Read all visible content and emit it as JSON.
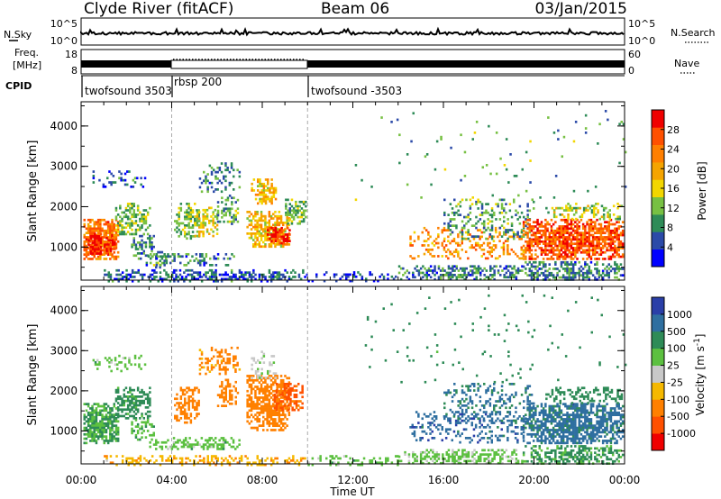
{
  "header": {
    "station": "Clyde River (fitACF)",
    "beam": "Beam 06",
    "date": "03/Jan/2015"
  },
  "top_panel": {
    "nsky_label": "N.Sky",
    "nsky_ticks": [
      "10^5",
      "10^0"
    ],
    "nsearch_label": "N.Search",
    "nsearch_ticks": [
      "10^5",
      "10^0"
    ],
    "freq_label_1": "Freq.",
    "freq_label_2": "[MHz]",
    "freq_ticks": [
      "18",
      "8"
    ],
    "nave_label": "Nave",
    "nave_ticks": [
      "60",
      "0"
    ],
    "cpid_label": "CPID",
    "cpid_segments": [
      {
        "label": "twofsound 3503",
        "start_hour": 0,
        "end_hour": 4
      },
      {
        "label": "rbsp 200",
        "start_hour": 4,
        "end_hour": 10
      },
      {
        "label": "twofsound -3503",
        "start_hour": 10,
        "end_hour": 24
      }
    ]
  },
  "chart_data": [
    {
      "type": "heatmap",
      "name": "power",
      "ylabel": "Slant Range [km]",
      "xlabel": "Time UT",
      "xlim": [
        0,
        24
      ],
      "ylim": [
        180,
        4600
      ],
      "x_ticks": [
        "00:00",
        "04:00",
        "08:00",
        "12:00",
        "16:00",
        "20:00",
        "00:00"
      ],
      "x_tick_hours": [
        0,
        4,
        8,
        12,
        16,
        20,
        24
      ],
      "y_ticks": [
        1000,
        2000,
        3000,
        4000
      ],
      "colorbar": {
        "label": "Power [dB]",
        "range": [
          0,
          32
        ],
        "ticks": [
          4,
          8,
          12,
          16,
          20,
          24,
          28
        ],
        "colors": [
          "#0000ff",
          "#2b4aa8",
          "#2e8b57",
          "#77c043",
          "#f2d600",
          "#f5a400",
          "#ff7f00",
          "#ff5000",
          "#f00000"
        ]
      },
      "mode_change_hours": [
        4,
        10
      ],
      "regions": [
        {
          "t": [
            0.1,
            1.6
          ],
          "r": [
            700,
            1700
          ],
          "v": 24,
          "d": 0.9
        },
        {
          "t": [
            0.3,
            0.9
          ],
          "r": [
            850,
            1350
          ],
          "v": 30,
          "d": 0.95
        },
        {
          "t": [
            1.0,
            1.5
          ],
          "r": [
            850,
            1250
          ],
          "v": 28,
          "d": 0.9
        },
        {
          "t": [
            1.5,
            3.0
          ],
          "r": [
            1300,
            2100
          ],
          "v": 12,
          "d": 0.6
        },
        {
          "t": [
            2.2,
            3.2
          ],
          "r": [
            800,
            1300
          ],
          "v": 8,
          "d": 0.5
        },
        {
          "t": [
            0.5,
            2.8
          ],
          "r": [
            2500,
            2900
          ],
          "v": 6,
          "d": 0.25
        },
        {
          "t": [
            3.0,
            3.8
          ],
          "r": [
            500,
            900
          ],
          "v": 10,
          "d": 0.4
        },
        {
          "t": [
            4.1,
            5.2
          ],
          "r": [
            1200,
            2100
          ],
          "v": 12,
          "d": 0.6
        },
        {
          "t": [
            5.0,
            6.0
          ],
          "r": [
            1300,
            2000
          ],
          "v": 16,
          "d": 0.6
        },
        {
          "t": [
            5.2,
            7.0
          ],
          "r": [
            2400,
            3100
          ],
          "v": 8,
          "d": 0.35
        },
        {
          "t": [
            6.0,
            6.9
          ],
          "r": [
            1600,
            2300
          ],
          "v": 10,
          "d": 0.5
        },
        {
          "t": [
            7.5,
            8.6
          ],
          "r": [
            2100,
            2700
          ],
          "v": 18,
          "d": 0.6
        },
        {
          "t": [
            7.3,
            9.2
          ],
          "r": [
            1000,
            1900
          ],
          "v": 18,
          "d": 0.8
        },
        {
          "t": [
            8.2,
            9.2
          ],
          "r": [
            1100,
            1500
          ],
          "v": 28,
          "d": 0.9
        },
        {
          "t": [
            9.0,
            10.0
          ],
          "r": [
            1600,
            2200
          ],
          "v": 12,
          "d": 0.6
        },
        {
          "t": [
            1.0,
            10.0
          ],
          "r": [
            180,
            450
          ],
          "v": 6,
          "d": 0.55
        },
        {
          "t": [
            2.5,
            7.0
          ],
          "r": [
            550,
            850
          ],
          "v": 8,
          "d": 0.4
        },
        {
          "t": [
            10.0,
            14.0
          ],
          "r": [
            180,
            400
          ],
          "v": 4,
          "d": 0.25
        },
        {
          "t": [
            14.0,
            19.5
          ],
          "r": [
            180,
            550
          ],
          "v": 8,
          "d": 0.55
        },
        {
          "t": [
            14.5,
            19.5
          ],
          "r": [
            700,
            1500
          ],
          "v": 22,
          "d": 0.3
        },
        {
          "t": [
            16.0,
            20.0
          ],
          "r": [
            1200,
            2200
          ],
          "v": 10,
          "d": 0.3
        },
        {
          "t": [
            19.5,
            23.9
          ],
          "r": [
            700,
            1700
          ],
          "v": 26,
          "d": 0.85
        },
        {
          "t": [
            20.5,
            23.9
          ],
          "r": [
            1700,
            2100
          ],
          "v": 14,
          "d": 0.4
        },
        {
          "t": [
            19.5,
            23.9
          ],
          "r": [
            180,
            650
          ],
          "v": 8,
          "d": 0.6
        },
        {
          "t": [
            12.0,
            24.0
          ],
          "r": [
            2200,
            4400
          ],
          "v": 10,
          "d": 0.02
        }
      ]
    },
    {
      "type": "heatmap",
      "name": "velocity",
      "ylabel": "Slant Range [km]",
      "xlabel": "Time UT",
      "xlim": [
        0,
        24
      ],
      "ylim": [
        180,
        4600
      ],
      "x_ticks": [
        "00:00",
        "04:00",
        "08:00",
        "12:00",
        "16:00",
        "20:00",
        "00:00"
      ],
      "x_tick_hours": [
        0,
        4,
        8,
        12,
        16,
        20,
        24
      ],
      "y_ticks": [
        1000,
        2000,
        3000,
        4000
      ],
      "colorbar": {
        "label": "Velocity [m s^-1]",
        "tick_labels": [
          "1000",
          "500",
          "100",
          "25",
          "-25",
          "-100",
          "-500",
          "-1000"
        ],
        "colors": [
          "#2a3fa8",
          "#2f6fa0",
          "#2e8b57",
          "#5cc040",
          "#c8c8c8",
          "#f5b800",
          "#ff8000",
          "#ff5000",
          "#f00000"
        ]
      },
      "mode_change_hours": [
        4,
        10
      ],
      "regions": [
        {
          "t": [
            0.1,
            1.6
          ],
          "r": [
            700,
            1700
          ],
          "v": 100,
          "d": 0.9
        },
        {
          "t": [
            1.5,
            3.0
          ],
          "r": [
            1300,
            2100
          ],
          "v": 150,
          "d": 0.6
        },
        {
          "t": [
            2.2,
            3.2
          ],
          "r": [
            800,
            1300
          ],
          "v": 80,
          "d": 0.5
        },
        {
          "t": [
            0.5,
            2.8
          ],
          "r": [
            2500,
            2900
          ],
          "v": 60,
          "d": 0.25
        },
        {
          "t": [
            4.1,
            5.2
          ],
          "r": [
            1200,
            2100
          ],
          "v": -300,
          "d": 0.6
        },
        {
          "t": [
            5.2,
            7.0
          ],
          "r": [
            2400,
            3100
          ],
          "v": -150,
          "d": 0.35
        },
        {
          "t": [
            6.0,
            6.9
          ],
          "r": [
            1600,
            2300
          ],
          "v": -200,
          "d": 0.5
        },
        {
          "t": [
            7.3,
            9.2
          ],
          "r": [
            1000,
            2400
          ],
          "v": -300,
          "d": 0.8
        },
        {
          "t": [
            8.5,
            9.8
          ],
          "r": [
            1500,
            2200
          ],
          "v": -700,
          "d": 0.6
        },
        {
          "t": [
            7.5,
            8.6
          ],
          "r": [
            2300,
            3000
          ],
          "v": 10,
          "d": 0.3
        },
        {
          "t": [
            3.0,
            7.0
          ],
          "r": [
            550,
            850
          ],
          "v": 60,
          "d": 0.5
        },
        {
          "t": [
            1.0,
            10.0
          ],
          "r": [
            180,
            400
          ],
          "v": -80,
          "d": 0.5
        },
        {
          "t": [
            10.0,
            14.0
          ],
          "r": [
            180,
            400
          ],
          "v": 60,
          "d": 0.3
        },
        {
          "t": [
            14.0,
            19.5
          ],
          "r": [
            180,
            550
          ],
          "v": 50,
          "d": 0.55
        },
        {
          "t": [
            14.5,
            19.5
          ],
          "r": [
            700,
            1500
          ],
          "v": 800,
          "d": 0.3
        },
        {
          "t": [
            16.0,
            20.0
          ],
          "r": [
            1200,
            2200
          ],
          "v": 600,
          "d": 0.3
        },
        {
          "t": [
            19.5,
            23.9
          ],
          "r": [
            700,
            1700
          ],
          "v": 700,
          "d": 0.8
        },
        {
          "t": [
            20.5,
            23.9
          ],
          "r": [
            1700,
            2100
          ],
          "v": 300,
          "d": 0.4
        },
        {
          "t": [
            19.5,
            23.9
          ],
          "r": [
            180,
            650
          ],
          "v": 120,
          "d": 0.6
        },
        {
          "t": [
            12.0,
            24.0
          ],
          "r": [
            2200,
            4400
          ],
          "v": 200,
          "d": 0.02
        }
      ]
    }
  ]
}
